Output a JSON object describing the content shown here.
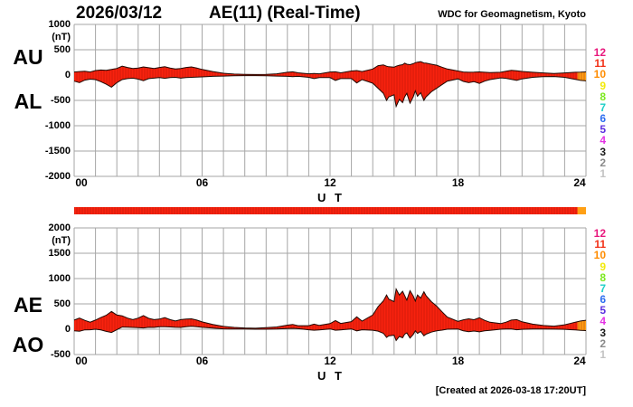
{
  "header": {
    "date": "2026/03/12",
    "title": "AE(11) (Real-Time)",
    "org": "WDC for Geomagnetism, Kyoto"
  },
  "footer": {
    "created": "[Created at 2026-03-18 17:20UT]"
  },
  "colors": {
    "data_fill": "#f8220e",
    "recent_fill": "#ffa014",
    "data_outline": "#200a04",
    "grid": "#a6a6a6",
    "text": "#000000"
  },
  "station_numbers": [
    {
      "label": "12",
      "color": "#e8187d"
    },
    {
      "label": "11",
      "color": "#f23016"
    },
    {
      "label": "10",
      "color": "#ff8c00"
    },
    {
      "label": "9",
      "color": "#f2ea0a"
    },
    {
      "label": "8",
      "color": "#7ce81e"
    },
    {
      "label": "7",
      "color": "#1ecfc8"
    },
    {
      "label": "6",
      "color": "#2b6cf0"
    },
    {
      "label": "5",
      "color": "#5c30e0"
    },
    {
      "label": "4",
      "color": "#e431e4"
    },
    {
      "label": "3",
      "color": "#1c1c1c"
    },
    {
      "label": "2",
      "color": "#8a8a8a"
    },
    {
      "label": "1",
      "color": "#c3c3c3"
    }
  ],
  "panels": [
    {
      "id": "au-al",
      "left_labels": [
        "AU",
        "AL"
      ],
      "unit": "(nT)",
      "y_tick_labels": [
        "1000",
        "500",
        "0",
        "-500",
        "-1000",
        "-1500",
        "-2000"
      ],
      "y_tick_values": [
        1000,
        500,
        0,
        -500,
        -1000,
        -1500,
        -2000
      ],
      "x_tick_labels": [
        "00",
        "06",
        "12",
        "18",
        "24"
      ],
      "x_tick_hours": [
        0,
        6,
        12,
        18,
        24
      ],
      "xlabel": "U T"
    },
    {
      "id": "ae-ao",
      "left_labels": [
        "AE",
        "AO"
      ],
      "unit": "(nT)",
      "y_tick_labels": [
        "2000",
        "1500",
        "1000",
        "500",
        "0",
        "-500"
      ],
      "y_tick_values": [
        2000,
        1500,
        1000,
        500,
        0,
        -500
      ],
      "x_tick_labels": [
        "00",
        "06",
        "12",
        "18",
        "24"
      ],
      "x_tick_hours": [
        0,
        6,
        12,
        18,
        24
      ],
      "xlabel": "U T"
    }
  ],
  "quality_bar": {
    "range_hours": [
      0,
      24
    ],
    "tail_start_hour": 23.6,
    "color": "#f8220e",
    "tail_color": "#ffa014"
  },
  "chart_data": [
    {
      "type": "area",
      "title": "AU / AL auroral electrojet indices, 2026/03/12 (nT)",
      "xlabel": "U T",
      "ylabel": "(nT)",
      "xlim": [
        0,
        24
      ],
      "ylim": [
        -2000,
        1000
      ],
      "grid": true,
      "recent_data_from_hour": 23.6,
      "x": [
        0,
        0.25,
        0.5,
        0.75,
        1,
        1.25,
        1.5,
        1.75,
        2,
        2.25,
        2.5,
        2.75,
        3,
        3.25,
        3.5,
        3.75,
        4,
        4.25,
        4.5,
        4.75,
        5,
        5.25,
        5.5,
        5.75,
        6,
        6.5,
        7,
        7.5,
        8,
        8.5,
        9,
        9.5,
        10,
        10.25,
        10.5,
        11,
        11.25,
        11.5,
        12,
        12.25,
        12.5,
        13,
        13.25,
        13.5,
        14,
        14.25,
        14.5,
        14.65,
        14.75,
        15,
        15.1,
        15.25,
        15.4,
        15.5,
        15.6,
        15.75,
        15.9,
        16,
        16.1,
        16.25,
        16.4,
        16.5,
        16.75,
        17,
        17.25,
        17.5,
        18,
        18.25,
        18.5,
        18.75,
        19,
        19.25,
        19.5,
        20,
        20.25,
        20.5,
        20.75,
        21,
        21.5,
        22,
        22.5,
        23,
        23.25,
        23.5,
        23.75,
        24
      ],
      "series": [
        {
          "name": "AU",
          "values": [
            60,
            70,
            75,
            60,
            90,
            100,
            95,
            110,
            130,
            175,
            150,
            130,
            140,
            160,
            145,
            130,
            150,
            165,
            140,
            120,
            130,
            150,
            160,
            140,
            110,
            70,
            35,
            20,
            15,
            10,
            15,
            25,
            55,
            65,
            45,
            25,
            30,
            25,
            60,
            65,
            45,
            80,
            90,
            70,
            120,
            185,
            200,
            175,
            165,
            155,
            175,
            195,
            205,
            235,
            215,
            205,
            225,
            245,
            255,
            265,
            240,
            235,
            215,
            195,
            155,
            120,
            80,
            60,
            55,
            58,
            62,
            55,
            48,
            55,
            75,
            95,
            85,
            72,
            55,
            42,
            32,
            42,
            48,
            55,
            58,
            62
          ]
        },
        {
          "name": "AL",
          "values": [
            -120,
            -150,
            -100,
            -80,
            -90,
            -130,
            -180,
            -240,
            -150,
            -90,
            -70,
            -60,
            -80,
            -110,
            -70,
            -60,
            -50,
            -65,
            -50,
            -45,
            -60,
            -50,
            -45,
            -40,
            -35,
            -25,
            -20,
            -15,
            -10,
            -10,
            -15,
            -20,
            -25,
            -30,
            -25,
            -45,
            -70,
            -50,
            -50,
            -105,
            -70,
            -70,
            -155,
            -90,
            -160,
            -260,
            -360,
            -500,
            -430,
            -390,
            -620,
            -480,
            -545,
            -430,
            -360,
            -555,
            -430,
            -310,
            -420,
            -350,
            -500,
            -430,
            -330,
            -260,
            -190,
            -120,
            -75,
            -125,
            -150,
            -130,
            -165,
            -120,
            -90,
            -55,
            -65,
            -85,
            -105,
            -75,
            -45,
            -32,
            -28,
            -45,
            -65,
            -85,
            -105,
            -115
          ]
        }
      ]
    },
    {
      "type": "area",
      "title": "AE / AO auroral electrojet indices, 2026/03/12 (nT)",
      "xlabel": "U T",
      "ylabel": "(nT)",
      "xlim": [
        0,
        24
      ],
      "ylim": [
        -500,
        2000
      ],
      "grid": true,
      "recent_data_from_hour": 23.6,
      "x": [
        0,
        0.25,
        0.5,
        0.75,
        1,
        1.25,
        1.5,
        1.75,
        2,
        2.25,
        2.5,
        2.75,
        3,
        3.25,
        3.5,
        3.75,
        4,
        4.25,
        4.5,
        4.75,
        5,
        5.25,
        5.5,
        5.75,
        6,
        6.5,
        7,
        7.5,
        8,
        8.5,
        9,
        9.5,
        10,
        10.25,
        10.5,
        11,
        11.25,
        11.5,
        12,
        12.25,
        12.5,
        13,
        13.25,
        13.5,
        14,
        14.25,
        14.5,
        14.65,
        14.75,
        15,
        15.1,
        15.25,
        15.4,
        15.5,
        15.6,
        15.75,
        15.9,
        16,
        16.1,
        16.25,
        16.4,
        16.5,
        16.75,
        17,
        17.25,
        17.5,
        18,
        18.25,
        18.5,
        18.75,
        19,
        19.25,
        19.5,
        20,
        20.25,
        20.5,
        20.75,
        21,
        21.5,
        22,
        22.5,
        23,
        23.25,
        23.5,
        23.75,
        24
      ],
      "series": [
        {
          "name": "AE",
          "values": [
            180,
            220,
            175,
            140,
            180,
            230,
            275,
            350,
            280,
            265,
            220,
            190,
            220,
            270,
            215,
            190,
            200,
            230,
            190,
            165,
            190,
            200,
            205,
            180,
            145,
            95,
            55,
            35,
            25,
            20,
            30,
            45,
            80,
            95,
            70,
            70,
            100,
            75,
            110,
            170,
            115,
            150,
            245,
            160,
            280,
            445,
            560,
            675,
            595,
            545,
            795,
            675,
            750,
            665,
            575,
            760,
            655,
            555,
            675,
            615,
            740,
            665,
            545,
            455,
            345,
            240,
            155,
            185,
            205,
            188,
            227,
            175,
            138,
            110,
            140,
            180,
            190,
            147,
            100,
            74,
            60,
            87,
            113,
            140,
            163,
            177
          ]
        },
        {
          "name": "AO",
          "values": [
            -30,
            -40,
            -13,
            -10,
            0,
            -15,
            -43,
            -65,
            -10,
            43,
            40,
            35,
            30,
            25,
            38,
            35,
            50,
            50,
            45,
            38,
            35,
            50,
            58,
            50,
            38,
            23,
            8,
            3,
            3,
            0,
            0,
            3,
            15,
            18,
            10,
            -10,
            -20,
            -13,
            5,
            -20,
            -13,
            5,
            -33,
            -10,
            -20,
            -38,
            -80,
            -163,
            -133,
            -118,
            -223,
            -143,
            -170,
            -98,
            -73,
            -175,
            -103,
            -33,
            -83,
            -43,
            -130,
            -98,
            -58,
            -33,
            -18,
            0,
            3,
            -33,
            -48,
            -36,
            -52,
            -33,
            -21,
            0,
            5,
            5,
            -10,
            -2,
            5,
            5,
            2,
            -2,
            -9,
            -15,
            -24,
            -27
          ]
        }
      ]
    }
  ]
}
